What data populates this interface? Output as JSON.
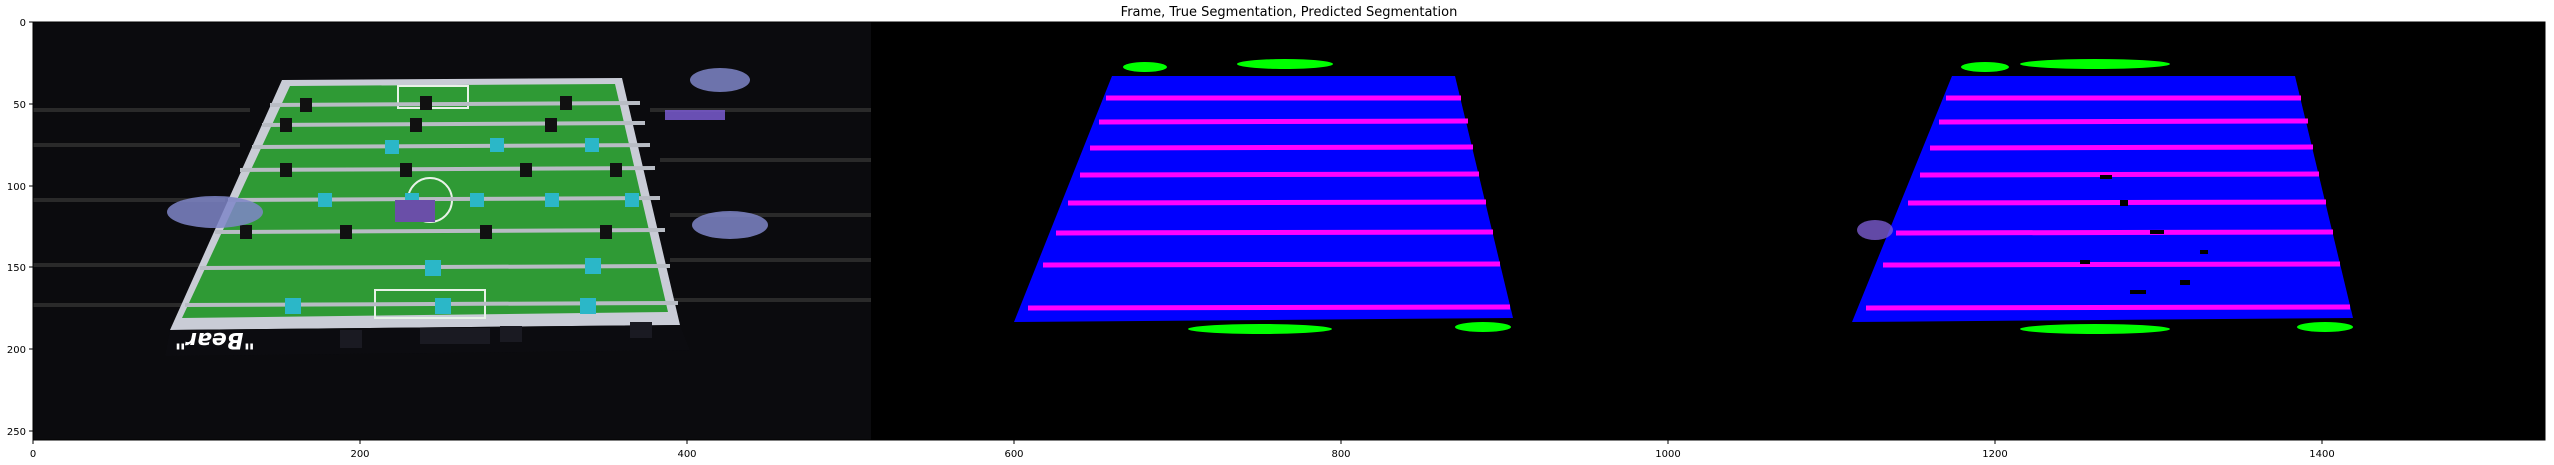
{
  "figure": {
    "title": "Frame, True Segmentation, Predicted Segmentation",
    "x_ticks": [
      "0",
      "200",
      "400",
      "600",
      "800",
      "1000",
      "1200",
      "1400"
    ],
    "y_ticks": [
      "0",
      "50",
      "100",
      "150",
      "200",
      "250"
    ],
    "x_range": [
      0,
      1536
    ],
    "y_range": [
      256,
      0
    ],
    "panels": [
      {
        "name": "frame",
        "table_text": "\"Bear\""
      },
      {
        "name": "true-segmentation"
      },
      {
        "name": "predicted-segmentation"
      }
    ],
    "colors": {
      "background": "#000000",
      "playfield": "#0000ff",
      "rods": "#ff00ff",
      "goals": "#00ff00",
      "field_green": "#2f9a35",
      "player_teal": "#2bb7c8",
      "player_black": "#111111"
    }
  }
}
